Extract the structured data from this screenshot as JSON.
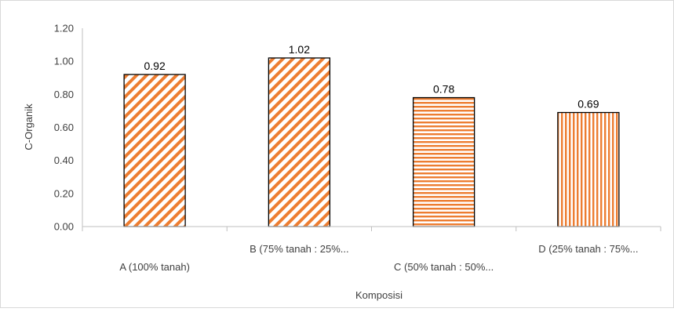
{
  "chart_data": {
    "type": "bar",
    "title": "",
    "xlabel": "Komposisi",
    "ylabel": "C-Organik",
    "categories": [
      "A (100% tanah)",
      "B (75% tanah : 25%...",
      "C (50% tanah : 50%...",
      "D (25% tanah : 75%..."
    ],
    "values": [
      0.92,
      1.02,
      0.78,
      0.69
    ],
    "data_labels": [
      "0.92",
      "1.02",
      "0.78",
      "0.69"
    ],
    "yticks": [
      "0.00",
      "0.20",
      "0.40",
      "0.60",
      "0.80",
      "1.00",
      "1.20"
    ],
    "ylim": [
      0,
      1.2
    ],
    "grid": false,
    "legend": "none",
    "bar_fill_patterns": [
      "diagonal-down",
      "diagonal-down",
      "horizontal",
      "vertical"
    ],
    "colors": {
      "bar_pattern": "#ED7D31",
      "bar_outline": "#000000",
      "axis": "#BFBFBF",
      "text": "#404040"
    }
  }
}
